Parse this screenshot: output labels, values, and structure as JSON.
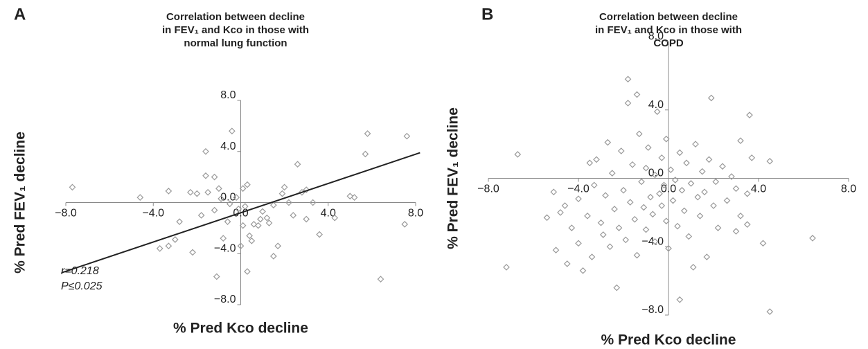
{
  "chart_data": [
    {
      "type": "scatter",
      "panel_label": "A",
      "title": [
        "Correlation between decline",
        "in FEV₁ and Kco in those with",
        "normal lung function"
      ],
      "xlabel": "% Pred Kco decline",
      "ylabel": "% Pred FEV₁ decline",
      "xlim": [
        -8,
        8
      ],
      "ylim": [
        -8,
        8
      ],
      "xticks": [
        {
          "value": -8,
          "label": "−8.0"
        },
        {
          "value": -4,
          "label": "−4.0"
        },
        {
          "value": 0,
          "label": "0.0"
        },
        {
          "value": 4,
          "label": "4.0"
        },
        {
          "value": 8,
          "label": "8.0"
        }
      ],
      "yticks": [
        {
          "value": -8,
          "label": "−8.0"
        },
        {
          "value": -4,
          "label": "−4.0"
        },
        {
          "value": 0,
          "label": "0.0"
        },
        {
          "value": 4,
          "label": "4.0"
        },
        {
          "value": 8,
          "label": "8.0"
        }
      ],
      "color": "#999999",
      "x": [
        -7.7,
        -4.6,
        -3.7,
        -3.3,
        -3.0,
        -3.3,
        -2.8,
        -2.3,
        -2.0,
        -2.2,
        -1.6,
        -1.6,
        -1.2,
        -1.5,
        -1.0,
        -1.1,
        -0.6,
        -0.4,
        -0.8,
        -0.2,
        -0.1,
        0.1,
        0.3,
        0.1,
        0.0,
        0.4,
        0.3,
        0.5,
        0.6,
        0.8,
        0.9,
        1.0,
        1.2,
        1.3,
        1.5,
        1.5,
        1.7,
        1.9,
        2.0,
        2.2,
        2.4,
        2.6,
        2.8,
        3.0,
        3.0,
        3.3,
        3.6,
        4.3,
        5.0,
        5.2,
        5.7,
        5.8,
        6.4,
        7.6,
        7.5,
        -1.2,
        -0.5,
        0.2,
        -1.8,
        -0.9
      ],
      "y": [
        1.2,
        0.4,
        -3.6,
        -3.4,
        -2.9,
        0.9,
        -1.5,
        0.8,
        0.7,
        -3.9,
        2.1,
        4.0,
        2.0,
        0.8,
        1.1,
        -5.8,
        -1.5,
        5.6,
        -2.8,
        0.4,
        -0.5,
        1.1,
        1.4,
        -1.8,
        -3.4,
        -2.6,
        -5.4,
        -3.0,
        -1.7,
        -1.8,
        -1.3,
        -0.7,
        -1.2,
        -1.6,
        -4.2,
        -0.2,
        -3.4,
        0.7,
        1.2,
        0.0,
        -1.0,
        3.0,
        0.8,
        1.0,
        -1.3,
        0.0,
        -2.5,
        -1.2,
        0.5,
        0.4,
        3.8,
        5.4,
        -6.0,
        5.2,
        -1.7,
        -0.6,
        -0.1,
        -0.3,
        -1.0,
        0.3
      ],
      "trendline": {
        "x": [
          -8.2,
          8.2
        ],
        "y": [
          -5.5,
          3.9
        ],
        "color": "#222222"
      },
      "annotations": [
        "r=0.218",
        "P≤0.025"
      ]
    },
    {
      "type": "scatter",
      "panel_label": "B",
      "title": [
        "Correlation between decline",
        "in FEV₁ and Kco in those with",
        "COPD"
      ],
      "xlabel": "% Pred Kco decline",
      "ylabel": "% Pred FEV₁ decline",
      "xlim": [
        -8,
        8
      ],
      "ylim": [
        -8,
        8
      ],
      "xticks": [
        {
          "value": -8,
          "label": "−8.0"
        },
        {
          "value": -4,
          "label": "−4.0"
        },
        {
          "value": 0,
          "label": "0.0"
        },
        {
          "value": 4,
          "label": "4.0"
        },
        {
          "value": 8,
          "label": "8.0"
        }
      ],
      "yticks": [
        {
          "value": -8,
          "label": "−8.0"
        },
        {
          "value": -4,
          "label": "−4.0"
        },
        {
          "value": 0,
          "label": "0.0"
        },
        {
          "value": 4,
          "label": "4.0"
        },
        {
          "value": 8,
          "label": "8.0"
        }
      ],
      "color": "#999999",
      "x": [
        -6.7,
        -7.2,
        -5.1,
        -5.0,
        -5.4,
        -4.8,
        -4.6,
        -4.5,
        -4.3,
        -4.0,
        -4.0,
        -3.8,
        -3.6,
        -3.5,
        -3.4,
        -3.3,
        -3.2,
        -3.0,
        -2.9,
        -2.8,
        -2.7,
        -2.6,
        -2.5,
        -2.4,
        -2.3,
        -2.2,
        -2.1,
        -2.0,
        -1.9,
        -1.8,
        -1.8,
        -1.7,
        -1.6,
        -1.5,
        -1.4,
        -1.4,
        -1.3,
        -1.2,
        -1.1,
        -1.0,
        -1.0,
        -0.9,
        -0.8,
        -0.7,
        -0.6,
        -0.6,
        -0.5,
        -0.4,
        -0.3,
        -0.3,
        -0.2,
        -0.1,
        -0.1,
        0.0,
        0.1,
        0.2,
        0.3,
        0.4,
        0.5,
        0.5,
        0.6,
        0.7,
        0.8,
        0.9,
        1.0,
        1.1,
        1.2,
        1.3,
        1.4,
        1.5,
        1.6,
        1.7,
        1.9,
        1.8,
        2.0,
        2.1,
        2.2,
        2.4,
        2.6,
        2.8,
        3.0,
        3.2,
        3.5,
        3.2,
        3.6,
        3.7,
        4.5,
        3.5,
        4.2,
        3.0,
        6.4,
        4.5
      ],
      "y": [
        1.4,
        -5.2,
        -0.8,
        -4.2,
        -2.3,
        -2.0,
        -1.6,
        -5.0,
        -2.9,
        -1.2,
        -3.8,
        -5.4,
        -2.2,
        0.9,
        -4.6,
        -0.4,
        1.1,
        -2.6,
        -3.3,
        -1.0,
        2.1,
        -4.0,
        0.3,
        -1.8,
        -6.4,
        -2.9,
        1.6,
        -0.7,
        -3.6,
        4.4,
        5.8,
        -1.4,
        0.8,
        -2.4,
        4.9,
        -4.5,
        2.6,
        -0.2,
        -1.7,
        0.6,
        -3.0,
        1.8,
        -1.1,
        -2.1,
        0.2,
        -3.7,
        3.9,
        -0.9,
        1.2,
        -1.6,
        -0.4,
        2.3,
        -2.5,
        -4.1,
        0.5,
        -1.3,
        -0.1,
        -2.8,
        1.5,
        -7.1,
        -0.7,
        -1.9,
        0.9,
        -3.4,
        -0.3,
        -5.2,
        2.0,
        -1.1,
        -2.2,
        0.4,
        -0.8,
        -4.6,
        4.7,
        1.1,
        -1.6,
        -0.2,
        -2.9,
        0.7,
        -1.3,
        0.1,
        -0.6,
        -2.2,
        -0.9,
        2.2,
        3.7,
        1.2,
        1.0,
        -2.7,
        -3.8,
        -3.1,
        -3.5,
        -7.8
      ]
    }
  ]
}
